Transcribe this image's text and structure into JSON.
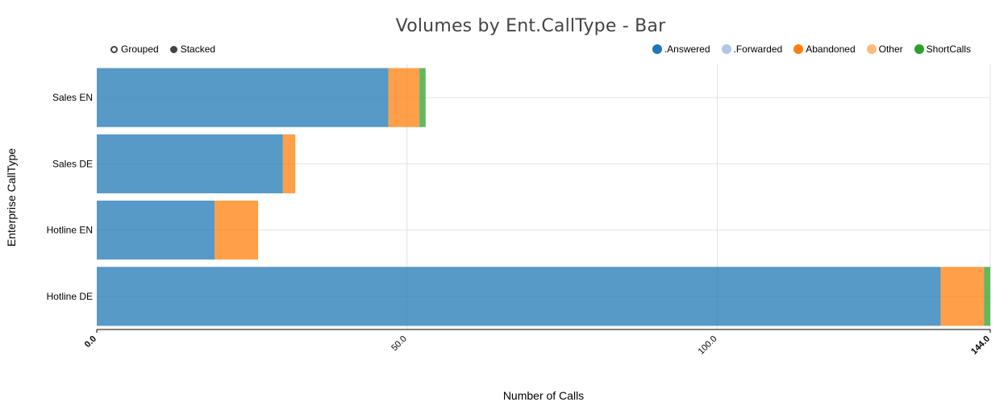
{
  "chart_data": {
    "type": "bar",
    "orientation": "horizontal",
    "stacked": true,
    "title": "Volumes by Ent.CallType - Bar",
    "xlabel": "Number of Calls",
    "ylabel": "Enterprise CallType",
    "xlim": [
      0,
      144
    ],
    "x_ticks": [
      "0.0",
      "50.0",
      "100.0",
      "144.0"
    ],
    "categories": [
      "Sales EN",
      "Sales DE",
      "Hotline EN",
      "Hotline DE"
    ],
    "series": [
      {
        "name": ".Answered",
        "color": "#1f77b4",
        "values": [
          47,
          30,
          19,
          136
        ]
      },
      {
        "name": ".Forwarded",
        "color": "#aec7e8",
        "values": [
          0,
          0,
          0,
          0
        ]
      },
      {
        "name": "Abandoned",
        "color": "#ff7f0e",
        "values": [
          5,
          2,
          7,
          7
        ]
      },
      {
        "name": "Other",
        "color": "#ffbb78",
        "values": [
          0,
          0,
          0,
          0
        ]
      },
      {
        "name": "ShortCalls",
        "color": "#2ca02c",
        "values": [
          1,
          0,
          0,
          1
        ]
      }
    ],
    "grid": true,
    "legend_position": "top-right"
  },
  "controls": {
    "grouped_label": "Grouped",
    "stacked_label": "Stacked"
  }
}
